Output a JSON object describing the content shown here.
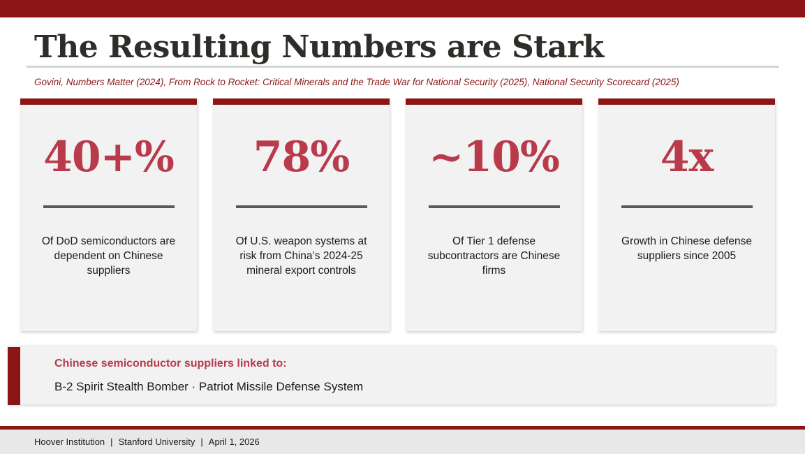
{
  "slide": {
    "title": "The Resulting Numbers are Stark",
    "sources": "Govini, Numbers Matter (2024), From Rock to Rocket: Critical Minerals and the Trade War for National Security (2025), National Security Scorecard (2025)"
  },
  "stats": [
    {
      "value": "40+%",
      "description": "Of DoD semiconductors are dependent on Chinese suppliers"
    },
    {
      "value": "78%",
      "description": "Of U.S. weapon systems at risk from China’s 2024-25 mineral export controls"
    },
    {
      "value": "~10%",
      "description": "Of Tier 1 defense subcontractors are Chinese firms"
    },
    {
      "value": "4x",
      "description": "Growth in Chinese defense suppliers since 2005"
    }
  ],
  "callout": {
    "heading": "Chinese semiconductor suppliers linked to:",
    "text": "B-2 Spirit Stealth Bomber · Patriot Missile Defense System"
  },
  "footer": {
    "organization": "Hoover Institution",
    "separator": "|",
    "university": "Stanford University",
    "date": "April 1, 2026"
  },
  "colors": {
    "brand_red": "#8c1515",
    "stat_red": "#b83a4b",
    "card_bg": "#f2f2f2"
  }
}
